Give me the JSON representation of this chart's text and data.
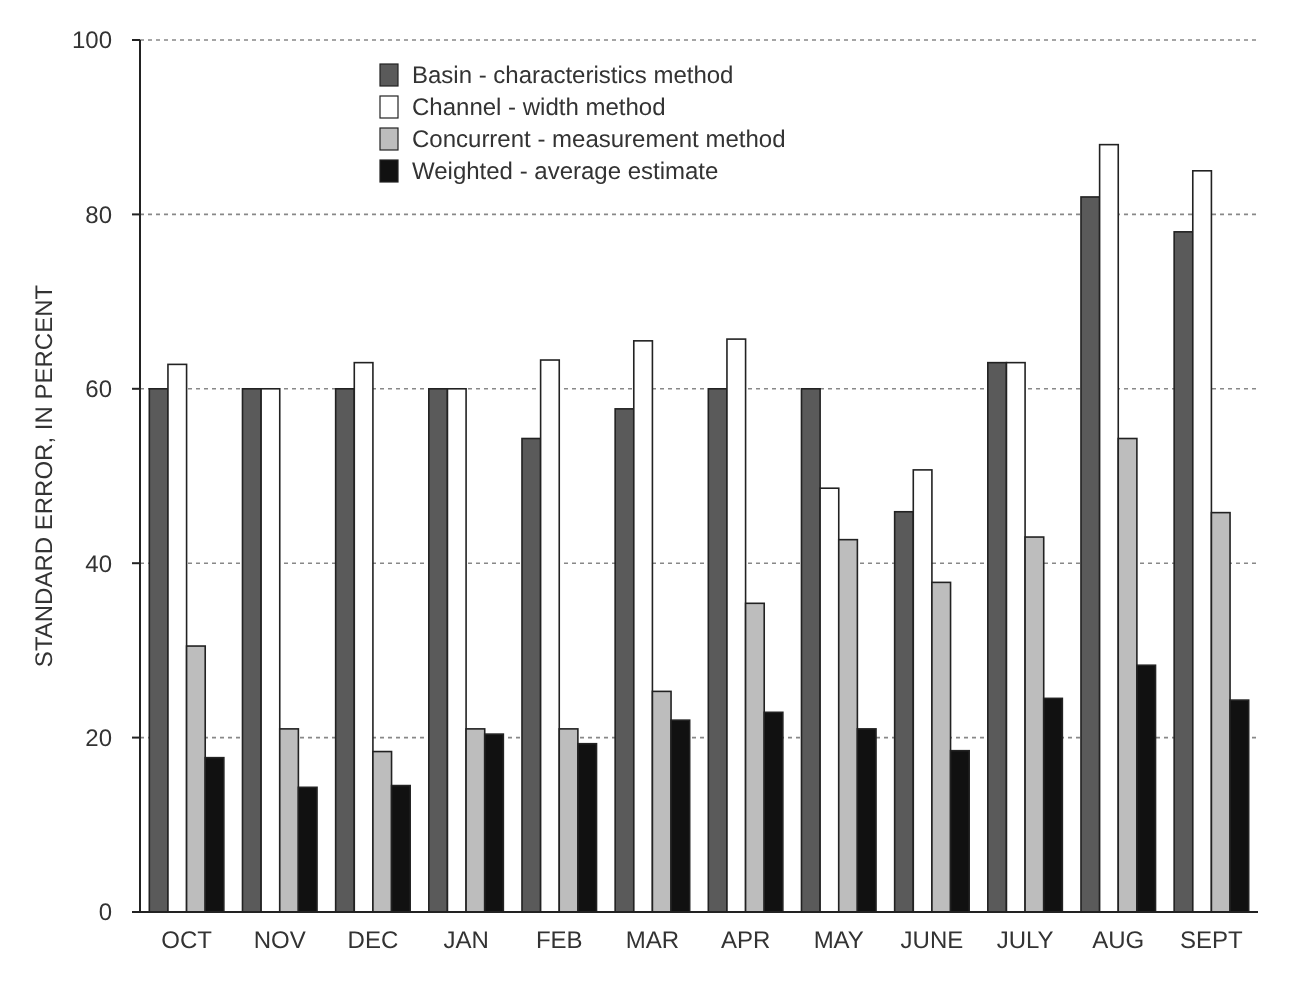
{
  "chart_data": {
    "type": "bar",
    "ylabel": "STANDARD ERROR, IN PERCENT",
    "categories": [
      "OCT",
      "NOV",
      "DEC",
      "JAN",
      "FEB",
      "MAR",
      "APR",
      "MAY",
      "JUNE",
      "JULY",
      "AUG",
      "SEPT"
    ],
    "series": [
      {
        "name": "Basin - characteristics method",
        "color": "#5a5a5a",
        "values": [
          60,
          60,
          60,
          60,
          54.3,
          57.7,
          60,
          60,
          45.9,
          63,
          82,
          78
        ]
      },
      {
        "name": "Channel - width method",
        "color": "#ffffff",
        "values": [
          62.8,
          60,
          63,
          60,
          63.3,
          65.5,
          65.7,
          48.6,
          50.7,
          63,
          88,
          85
        ]
      },
      {
        "name": "Concurrent - measurement method",
        "color": "#bdbdbd",
        "values": [
          30.5,
          21,
          18.4,
          21,
          21,
          25.3,
          35.4,
          42.7,
          37.8,
          43,
          54.3,
          45.8
        ]
      },
      {
        "name": "Weighted - average estimate",
        "color": "#111111",
        "values": [
          17.7,
          14.3,
          14.5,
          20.4,
          19.3,
          22,
          22.9,
          21,
          18.5,
          24.5,
          28.3,
          24.3
        ]
      }
    ],
    "ylim": [
      0,
      100
    ],
    "yticks": [
      0,
      20,
      40,
      60,
      80,
      100
    ],
    "grid": "y",
    "legend": "top left"
  }
}
